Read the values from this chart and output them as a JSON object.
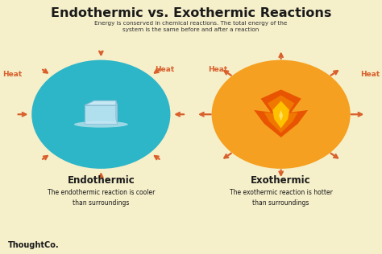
{
  "title": "Endothermic vs. Exothermic Reactions",
  "subtitle": "Energy is conserved in chemical reactions. The total energy of the\nsystem is the same before and after a reaction",
  "background_color": "#f5efca",
  "title_color": "#1a1a1a",
  "subtitle_color": "#333333",
  "arrow_color": "#d95f2b",
  "heat_color": "#d95f2b",
  "endo_circle_color": "#2db5c8",
  "exo_circle_color": "#f5a020",
  "endo_label": "Endothermic",
  "exo_label": "Exothermic",
  "endo_desc": "The endothermic reaction is cooler\nthan surroundings",
  "exo_desc": "The exothermic reaction is hotter\nthan surroundings",
  "label_color": "#1a1a1a",
  "brand": "ThoughtCo.",
  "brand_color": "#1a1a1a",
  "ice_color": "#c8e8f5",
  "ice_shadow": "#a0cce0",
  "melt_color": "#ddeeff",
  "flame_outer": "#e85000",
  "flame_mid": "#f07800",
  "flame_inner": "#ffc000",
  "flame_core": "#ffe060"
}
